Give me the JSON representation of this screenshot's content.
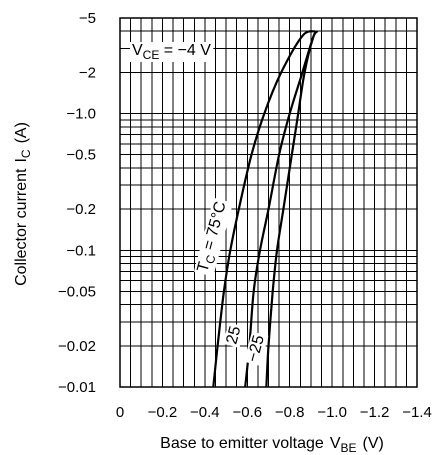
{
  "chart_data": {
    "type": "line",
    "title": "",
    "xlabel": "Base to emitter voltage",
    "xlabel_symbol": "V",
    "xlabel_sub": "BE",
    "xlabel_unit": "(V)",
    "ylabel": "Collector current",
    "ylabel_symbol": "I",
    "ylabel_sub": "C",
    "ylabel_unit": "(A)",
    "xlim": [
      0,
      -1.4
    ],
    "ylim": [
      -0.01,
      -5
    ],
    "y_scale": "log",
    "grid": true,
    "x_ticks": [
      0,
      -0.2,
      -0.4,
      -0.6,
      -0.8,
      -1.0,
      -1.2,
      -1.4
    ],
    "x_tick_labels": [
      "0",
      "−0.2",
      "−0.4",
      "−0.6",
      "−0.8",
      "−1.0",
      "−1.2",
      "−1.4"
    ],
    "y_ticks": [
      -0.01,
      -0.02,
      -0.05,
      -0.1,
      -0.2,
      -0.5,
      -1.0,
      -2,
      -5
    ],
    "y_tick_labels": [
      "−0.01",
      "−0.02",
      "−0.05",
      "−0.1",
      "−0.2",
      "−0.5",
      "−1.0",
      "−2",
      "−5"
    ],
    "condition": {
      "symbol": "V",
      "sub": "CE",
      "text": " = −4 V"
    },
    "series": [
      {
        "name": "T_C = 75°C",
        "label_symbol": "T",
        "label_sub": "C",
        "label_text": " = 75°C",
        "x": [
          -0.44,
          -0.46,
          -0.49,
          -0.52,
          -0.56,
          -0.62,
          -0.68,
          -0.76,
          -0.86,
          -0.92
        ],
        "y": [
          -0.01,
          -0.02,
          -0.05,
          -0.1,
          -0.2,
          -0.5,
          -1.0,
          -2,
          -3.7,
          -4
        ]
      },
      {
        "name": "25",
        "label_text": "25",
        "x": [
          -0.59,
          -0.61,
          -0.63,
          -0.66,
          -0.7,
          -0.75,
          -0.8,
          -0.86,
          -0.91,
          -0.93
        ],
        "y": [
          -0.01,
          -0.02,
          -0.05,
          -0.1,
          -0.2,
          -0.5,
          -1.0,
          -2,
          -3.6,
          -4
        ]
      },
      {
        "name": "−25",
        "label_text": "−25",
        "x": [
          -0.69,
          -0.7,
          -0.72,
          -0.74,
          -0.77,
          -0.81,
          -0.84,
          -0.87,
          -0.91,
          -0.93
        ],
        "y": [
          -0.01,
          -0.02,
          -0.05,
          -0.1,
          -0.2,
          -0.5,
          -1.0,
          -2,
          -3.6,
          -4
        ]
      }
    ]
  }
}
